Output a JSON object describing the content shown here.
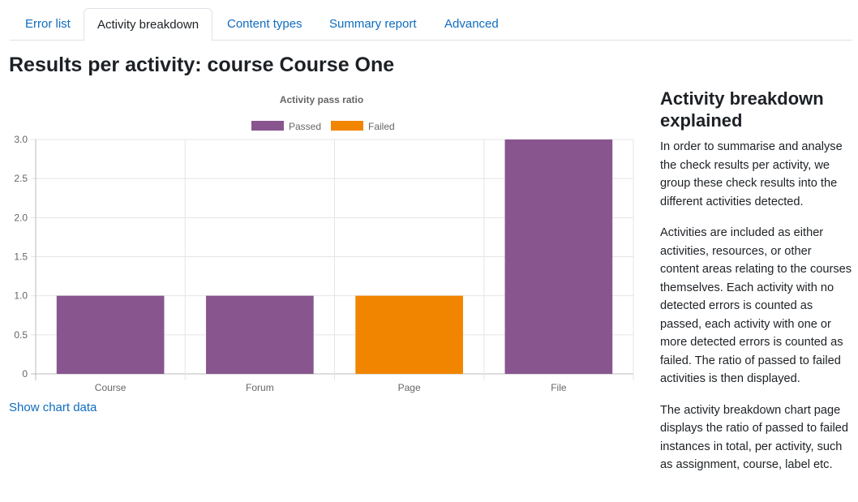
{
  "tabs": [
    {
      "label": "Error list",
      "active": false
    },
    {
      "label": "Activity breakdown",
      "active": true
    },
    {
      "label": "Content types",
      "active": false
    },
    {
      "label": "Summary report",
      "active": false
    },
    {
      "label": "Advanced",
      "active": false
    }
  ],
  "page_title": "Results per activity: course Course One",
  "show_chart_data": "Show chart data",
  "side": {
    "heading": "Activity breakdown explained",
    "paragraphs": [
      "In order to summarise and analyse the check results per activity, we group these check results into the different activities detected.",
      "Activities are included as either activities, resources, or other content areas relating to the courses themselves. Each activity with no detected errors is counted as passed, each activity with one or more detected errors is counted as failed. The ratio of passed to failed activities is then displayed.",
      "The activity breakdown chart page displays the ratio of passed to failed instances in total, per activity, such as assignment, course, label etc."
    ]
  },
  "chart_data": {
    "type": "bar",
    "title": "Activity pass ratio",
    "categories": [
      "Course",
      "Forum",
      "Page",
      "File"
    ],
    "stacked": true,
    "series": [
      {
        "name": "Passed",
        "color": "#88558f",
        "values": [
          1,
          1,
          0,
          3
        ]
      },
      {
        "name": "Failed",
        "color": "#f28500",
        "values": [
          0,
          0,
          1,
          0
        ]
      }
    ],
    "ylim": [
      0,
      3
    ],
    "yticks": [
      "0",
      "0.5",
      "1.0",
      "1.5",
      "2.0",
      "2.5",
      "3.0"
    ],
    "legend": "top",
    "grid": true
  }
}
